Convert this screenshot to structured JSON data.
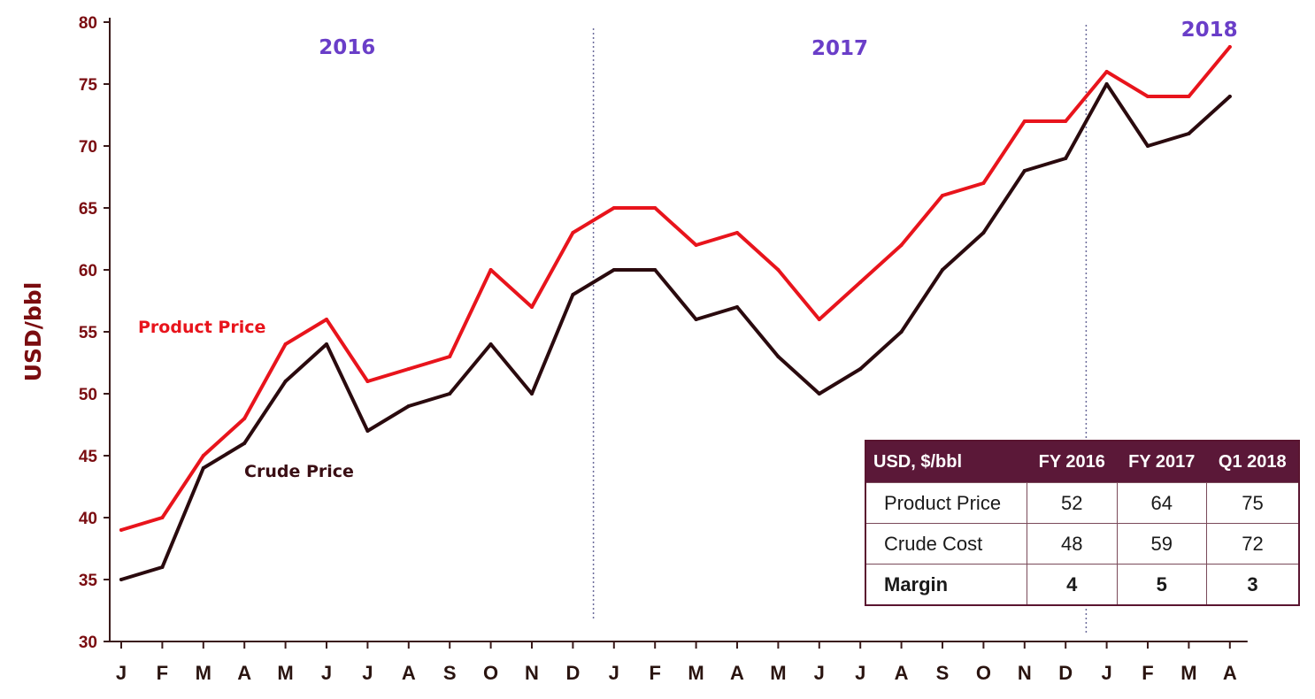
{
  "chart_data": {
    "type": "line",
    "title": "",
    "xlabel": "",
    "ylabel": "USD/bbl",
    "ylim": [
      30,
      80
    ],
    "yticks": [
      30,
      35,
      40,
      45,
      50,
      55,
      60,
      65,
      70,
      75,
      80
    ],
    "categories": [
      "J",
      "F",
      "M",
      "A",
      "M",
      "J",
      "J",
      "A",
      "S",
      "O",
      "N",
      "D",
      "J",
      "F",
      "M",
      "A",
      "M",
      "J",
      "J",
      "A",
      "S",
      "O",
      "N",
      "D",
      "J",
      "F",
      "M",
      "A"
    ],
    "year_labels": [
      {
        "label": "2016",
        "category_index": 5.5
      },
      {
        "label": "2017",
        "category_index": 17.5
      },
      {
        "label": "2018",
        "category_index": 26.5
      }
    ],
    "year_dividers_after_index": [
      11.5,
      23.5
    ],
    "series": [
      {
        "name": "Product Price",
        "color": "#e8141c",
        "values": [
          39,
          40,
          45,
          48,
          54,
          56,
          51,
          52,
          53,
          60,
          57,
          63,
          65,
          65,
          62,
          63,
          60,
          56,
          59,
          62,
          66,
          67,
          72,
          72,
          76,
          74,
          74,
          78
        ]
      },
      {
        "name": "Crude Price",
        "color": "#2a0a0e",
        "values": [
          35,
          36,
          44,
          46,
          51,
          54,
          47,
          49,
          50,
          54,
          50,
          58,
          60,
          60,
          56,
          57,
          53,
          50,
          52,
          55,
          60,
          63,
          68,
          69,
          75,
          70,
          71,
          74
        ]
      }
    ],
    "grid": false
  },
  "table": {
    "headers": [
      "USD, $/bbl",
      "FY 2016",
      "FY 2017",
      "Q1 2018"
    ],
    "rows": [
      {
        "label": "Product Price",
        "values": [
          "52",
          "64",
          "75"
        ],
        "bold": false
      },
      {
        "label": "Crude Cost",
        "values": [
          "48",
          "59",
          "72"
        ],
        "bold": false
      },
      {
        "label": "Margin",
        "values": [
          "4",
          "5",
          "3"
        ],
        "bold": true
      }
    ]
  },
  "colors": {
    "axis": "#3a1a1a",
    "header_bg": "#5b1838",
    "year_label": "#6a3ec8"
  }
}
